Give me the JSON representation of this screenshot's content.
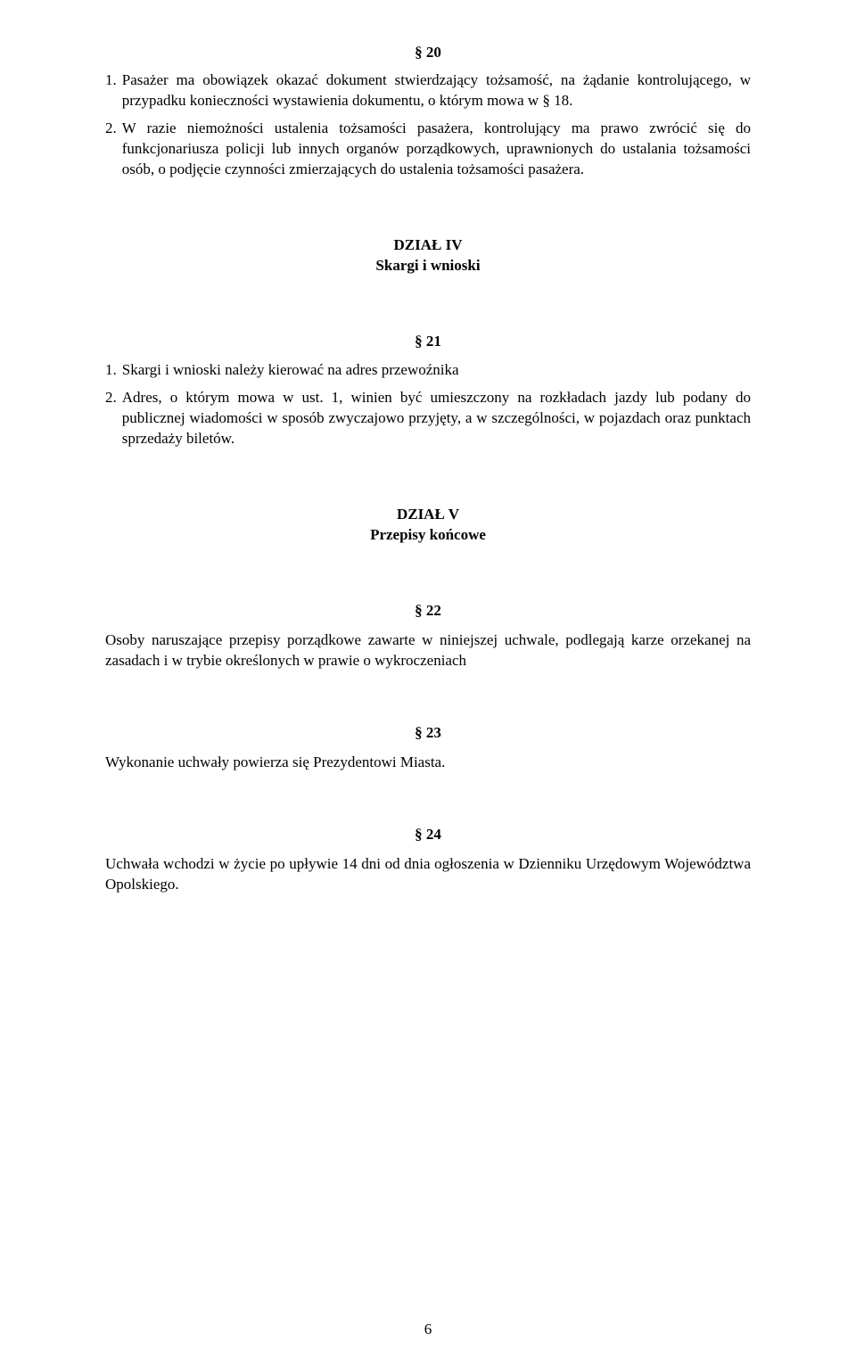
{
  "s20": {
    "symbol": "§ 20",
    "items": [
      {
        "num": "1.",
        "text": "Pasażer ma obowiązek okazać dokument stwierdzający tożsamość, na żądanie kontrolującego, w przypadku konieczności wystawienia dokumentu, o którym mowa w § 18."
      },
      {
        "num": "2.",
        "text": "W razie niemożności ustalenia tożsamości pasażera, kontrolujący ma prawo zwrócić się do funkcjonariusza policji lub innych organów porządkowych, uprawnionych do ustalania tożsamości osób, o podjęcie czynności zmierzających do ustalenia tożsamości pasażera."
      }
    ]
  },
  "dzial4": {
    "title": "DZIAŁ IV",
    "subtitle": "Skargi i wnioski"
  },
  "s21": {
    "symbol": "§ 21",
    "items": [
      {
        "num": "1.",
        "text": "Skargi i wnioski należy kierować na adres przewoźnika"
      },
      {
        "num": "2.",
        "text": "Adres, o którym mowa w ust. 1, winien być umieszczony na rozkładach jazdy lub podany do publicznej wiadomości w sposób zwyczajowo przyjęty, a w szczególności, w pojazdach oraz punktach sprzedaży biletów."
      }
    ]
  },
  "dzial5": {
    "title": "DZIAŁ V",
    "subtitle": "Przepisy końcowe"
  },
  "s22": {
    "symbol": "§ 22",
    "text": "Osoby naruszające przepisy porządkowe zawarte w niniejszej uchwale, podlegają karze orzekanej na zasadach i w trybie określonych w prawie o wykroczeniach"
  },
  "s23": {
    "symbol": "§ 23",
    "text": "Wykonanie uchwały powierza się Prezydentowi Miasta."
  },
  "s24": {
    "symbol": "§ 24",
    "text": "Uchwała wchodzi w życie po upływie 14 dni od dnia ogłoszenia w Dzienniku Urzędowym Województwa Opolskiego."
  },
  "page_number": "6"
}
